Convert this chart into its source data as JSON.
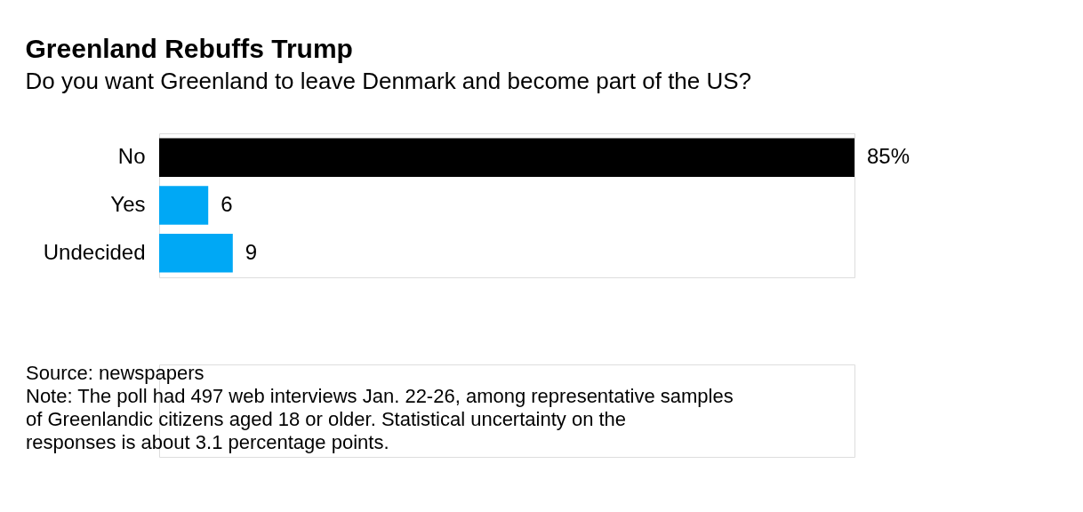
{
  "chart_data": {
    "type": "bar",
    "orientation": "horizontal",
    "title": "Greenland Rebuffs Trump",
    "subtitle": "Do you want Greenland to leave Denmark and become part of the US?",
    "categories": [
      "No",
      "Yes",
      "Undecided"
    ],
    "values": [
      85,
      6,
      9
    ],
    "colors": [
      "#000000",
      "#00a8f5",
      "#00a8f5"
    ],
    "value_labels": [
      "85%",
      "6",
      "9"
    ],
    "annotations": [
      "Source: newspapers",
      "Note: The poll had 497 web interviews Jan. 22-26, among representative samples of Greenlandic citizens aged 18 or older. Statistical uncertainty on the responses is about 3.1 percentage points."
    ]
  }
}
